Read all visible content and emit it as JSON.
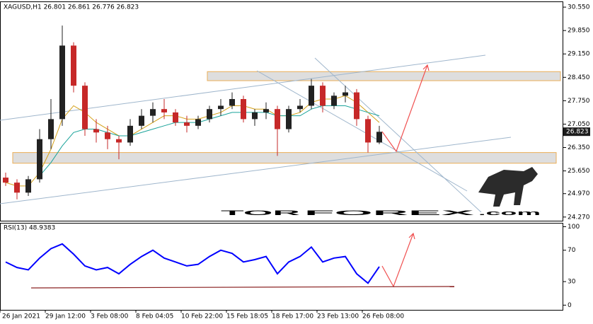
{
  "chart_data": [
    {
      "type": "candlestick",
      "title": "XAGUSD,H1  26.801 26.861 26.776 26.823",
      "categories": [
        "26 Jan 2021",
        null,
        null,
        null,
        "29 Jan 12:00",
        null,
        null,
        null,
        "3 Feb 08:00",
        null,
        null,
        null,
        "8 Feb 04:05",
        null,
        null,
        null,
        "10 Feb 22:00",
        null,
        null,
        null,
        "15 Feb 18:05",
        null,
        null,
        null,
        "18 Feb 17:00",
        null,
        null,
        null,
        "23 Feb 13:00",
        null,
        null,
        null,
        "26 Feb 08:00",
        null
      ],
      "open": [
        25.45,
        25.3,
        25.0,
        25.4,
        26.6,
        27.2,
        29.4,
        28.2,
        26.9,
        26.8,
        26.6,
        26.5,
        27.0,
        27.3,
        27.5,
        27.4,
        27.1,
        27.0,
        27.2,
        27.5,
        27.6,
        27.8,
        27.2,
        27.4,
        27.5,
        26.9,
        27.5,
        27.6,
        28.2,
        27.6,
        27.9,
        28.0,
        27.2,
        26.5
      ],
      "high": [
        25.6,
        25.4,
        25.5,
        26.9,
        27.8,
        30.0,
        29.5,
        28.3,
        27.2,
        27.0,
        26.7,
        27.2,
        27.5,
        27.7,
        27.8,
        27.5,
        27.3,
        27.3,
        27.6,
        27.8,
        28.0,
        27.9,
        27.5,
        27.7,
        27.6,
        27.6,
        27.8,
        28.4,
        28.3,
        28.0,
        28.2,
        28.1,
        27.3,
        27.0
      ],
      "low": [
        25.2,
        24.8,
        24.9,
        25.3,
        26.3,
        27.0,
        28.0,
        26.7,
        26.5,
        26.3,
        26.0,
        26.4,
        26.9,
        27.1,
        27.2,
        27.0,
        26.8,
        26.9,
        27.1,
        27.3,
        27.5,
        27.1,
        27.0,
        27.2,
        26.1,
        26.8,
        27.4,
        27.5,
        27.4,
        27.5,
        27.7,
        27.0,
        26.2,
        26.45
      ],
      "close": [
        25.3,
        25.0,
        25.4,
        26.6,
        27.2,
        29.4,
        28.2,
        26.9,
        26.8,
        26.6,
        26.5,
        27.0,
        27.3,
        27.5,
        27.4,
        27.1,
        27.0,
        27.2,
        27.5,
        27.6,
        27.8,
        27.2,
        27.4,
        27.5,
        26.9,
        27.5,
        27.6,
        28.2,
        27.6,
        27.9,
        28.0,
        27.2,
        26.5,
        26.82
      ],
      "up_color": "#222222",
      "down_color": "#c62828",
      "moving_averages": [
        {
          "color": "#d4a017",
          "values": [
            25.3,
            25.2,
            25.2,
            25.6,
            26.3,
            27.2,
            27.6,
            27.4,
            27.1,
            26.9,
            26.7,
            26.7,
            26.9,
            27.1,
            27.3,
            27.3,
            27.2,
            27.2,
            27.3,
            27.4,
            27.6,
            27.6,
            27.5,
            27.5,
            27.3,
            27.3,
            27.4,
            27.7,
            27.8,
            27.8,
            27.9,
            27.7,
            27.4,
            27.1
          ]
        },
        {
          "color": "#1aa39a",
          "values": [
            null,
            null,
            null,
            25.5,
            25.9,
            26.4,
            26.8,
            26.9,
            26.9,
            26.8,
            26.7,
            26.7,
            26.8,
            26.9,
            27.0,
            27.1,
            27.1,
            27.1,
            27.2,
            27.3,
            27.4,
            27.4,
            27.4,
            27.4,
            27.3,
            27.3,
            27.3,
            27.5,
            27.6,
            27.6,
            27.6,
            27.5,
            27.4,
            27.3
          ]
        }
      ],
      "zones": [
        {
          "top": 28.62,
          "bottom": 28.35
        },
        {
          "top": 26.2,
          "bottom": 25.88
        }
      ],
      "zone_color": "#d9d9d9",
      "last_price": 26.823,
      "watermark": [
        "TOR",
        "FOREX",
        ".com"
      ],
      "ylim": [
        24.16,
        30.7
      ],
      "yticks": [
        {
          "value": 30.55,
          "label": "30.550"
        },
        {
          "value": 29.85,
          "label": "29.850"
        },
        {
          "value": 29.15,
          "label": "29.150"
        },
        {
          "value": 28.45,
          "label": "28.450"
        },
        {
          "value": 27.75,
          "label": "27.750"
        },
        {
          "value": 27.05,
          "label": "27.050"
        },
        {
          "value": 26.35,
          "label": "26.350"
        },
        {
          "value": 25.65,
          "label": "25.650"
        },
        {
          "value": 24.97,
          "label": "24.970"
        },
        {
          "value": 24.27,
          "label": "24.270"
        }
      ]
    },
    {
      "type": "line",
      "title": "RSI(13) 48.9383",
      "color": "#0000ff",
      "values": [
        55,
        48,
        45,
        60,
        72,
        78,
        65,
        50,
        45,
        48,
        40,
        52,
        62,
        70,
        60,
        55,
        50,
        52,
        62,
        70,
        66,
        55,
        58,
        62,
        40,
        55,
        62,
        74,
        55,
        60,
        62,
        40,
        28,
        49
      ],
      "ylim": [
        -6,
        104
      ],
      "yticks": [
        0,
        30,
        70,
        100
      ]
    }
  ]
}
